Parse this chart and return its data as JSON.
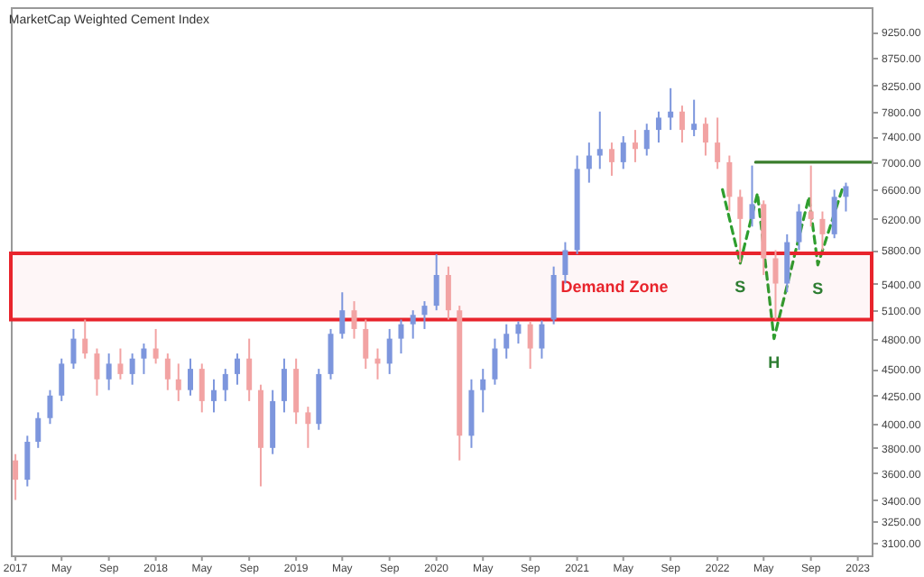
{
  "chart_data": {
    "type": "candlestick",
    "title": "MarketCap Weighted Cement Index",
    "x": [
      "2017-01",
      "2017-02",
      "2017-03",
      "2017-04",
      "2017-05",
      "2017-06",
      "2017-07",
      "2017-08",
      "2017-09",
      "2017-10",
      "2017-11",
      "2017-12",
      "2018-01",
      "2018-02",
      "2018-03",
      "2018-04",
      "2018-05",
      "2018-06",
      "2018-07",
      "2018-08",
      "2018-09",
      "2018-10",
      "2018-11",
      "2018-12",
      "2019-01",
      "2019-02",
      "2019-03",
      "2019-04",
      "2019-05",
      "2019-06",
      "2019-07",
      "2019-08",
      "2019-09",
      "2019-10",
      "2019-11",
      "2019-12",
      "2020-01",
      "2020-02",
      "2020-03",
      "2020-04",
      "2020-05",
      "2020-06",
      "2020-07",
      "2020-08",
      "2020-09",
      "2020-10",
      "2020-11",
      "2020-12",
      "2021-01",
      "2021-02",
      "2021-03",
      "2021-04",
      "2021-05",
      "2021-06",
      "2021-07",
      "2021-08",
      "2021-09",
      "2021-10",
      "2021-11",
      "2021-12",
      "2022-01",
      "2022-02",
      "2022-03",
      "2022-04",
      "2022-05",
      "2022-06",
      "2022-07",
      "2022-08",
      "2022-09",
      "2022-10",
      "2022-11",
      "2022-12"
    ],
    "ohlc": [
      [
        3700,
        3750,
        3400,
        3550
      ],
      [
        3550,
        3900,
        3500,
        3850
      ],
      [
        3850,
        4100,
        3800,
        4050
      ],
      [
        4050,
        4300,
        4000,
        4250
      ],
      [
        4250,
        4600,
        4200,
        4550
      ],
      [
        4550,
        4900,
        4500,
        4800
      ],
      [
        4800,
        5000,
        4600,
        4650
      ],
      [
        4650,
        4700,
        4250,
        4400
      ],
      [
        4400,
        4650,
        4300,
        4550
      ],
      [
        4550,
        4700,
        4400,
        4450
      ],
      [
        4450,
        4650,
        4350,
        4600
      ],
      [
        4600,
        4750,
        4450,
        4700
      ],
      [
        4700,
        4900,
        4550,
        4600
      ],
      [
        4600,
        4650,
        4300,
        4400
      ],
      [
        4400,
        4550,
        4200,
        4300
      ],
      [
        4300,
        4600,
        4250,
        4500
      ],
      [
        4500,
        4550,
        4100,
        4200
      ],
      [
        4200,
        4400,
        4100,
        4300
      ],
      [
        4300,
        4500,
        4200,
        4450
      ],
      [
        4450,
        4650,
        4350,
        4600
      ],
      [
        4600,
        4800,
        4200,
        4300
      ],
      [
        4300,
        4350,
        3500,
        3800
      ],
      [
        3800,
        4300,
        3750,
        4200
      ],
      [
        4200,
        4600,
        4100,
        4500
      ],
      [
        4500,
        4600,
        4000,
        4100
      ],
      [
        4100,
        4150,
        3800,
        4000
      ],
      [
        4000,
        4500,
        3950,
        4450
      ],
      [
        4450,
        4900,
        4400,
        4850
      ],
      [
        4850,
        5300,
        4800,
        5100
      ],
      [
        5100,
        5200,
        4800,
        4900
      ],
      [
        4900,
        5000,
        4500,
        4600
      ],
      [
        4600,
        4700,
        4400,
        4550
      ],
      [
        4550,
        4900,
        4450,
        4800
      ],
      [
        4800,
        5000,
        4650,
        4950
      ],
      [
        4950,
        5100,
        4800,
        5050
      ],
      [
        5050,
        5200,
        4900,
        5150
      ],
      [
        5150,
        5750,
        5100,
        5500
      ],
      [
        5500,
        5600,
        5000,
        5100
      ],
      [
        5100,
        5150,
        3700,
        3900
      ],
      [
        3900,
        4400,
        3800,
        4300
      ],
      [
        4300,
        4500,
        4100,
        4400
      ],
      [
        4400,
        4800,
        4350,
        4700
      ],
      [
        4700,
        4950,
        4600,
        4850
      ],
      [
        4850,
        4980,
        4750,
        4950
      ],
      [
        4950,
        4980,
        4500,
        4700
      ],
      [
        4700,
        4990,
        4600,
        4950
      ],
      [
        5000,
        5600,
        4950,
        5500
      ],
      [
        5500,
        5900,
        5400,
        5800
      ],
      [
        5800,
        7100,
        5750,
        6900
      ],
      [
        6900,
        7300,
        6700,
        7100
      ],
      [
        7100,
        7800,
        6900,
        7200
      ],
      [
        7200,
        7300,
        6800,
        7000
      ],
      [
        7000,
        7400,
        6900,
        7300
      ],
      [
        7300,
        7500,
        7000,
        7200
      ],
      [
        7200,
        7600,
        7100,
        7500
      ],
      [
        7500,
        7800,
        7300,
        7700
      ],
      [
        7700,
        8200,
        7500,
        7800
      ],
      [
        7800,
        7900,
        7300,
        7500
      ],
      [
        7500,
        8000,
        7400,
        7600
      ],
      [
        7600,
        7700,
        7100,
        7300
      ],
      [
        7300,
        7700,
        6900,
        7000
      ],
      [
        7000,
        7100,
        6300,
        6500
      ],
      [
        6500,
        6600,
        5650,
        6200
      ],
      [
        6200,
        6950,
        6100,
        6400
      ],
      [
        6400,
        6450,
        5500,
        5700
      ],
      [
        5700,
        5800,
        5000,
        5400
      ],
      [
        5400,
        6000,
        5300,
        5900
      ],
      [
        5900,
        6400,
        5800,
        6300
      ],
      [
        6300,
        6950,
        6100,
        6200
      ],
      [
        6200,
        6300,
        5800,
        6000
      ],
      [
        6000,
        6600,
        5950,
        6500
      ],
      [
        6500,
        6700,
        6300,
        6650
      ]
    ],
    "colors": [
      "#f2a3a3",
      "#7d96dd",
      "#7d96dd",
      "#7d96dd",
      "#7d96dd",
      "#7d96dd",
      "#f2a3a3",
      "#f2a3a3",
      "#7d96dd",
      "#f2a3a3",
      "#7d96dd",
      "#7d96dd",
      "#f2a3a3",
      "#f2a3a3",
      "#f2a3a3",
      "#7d96dd",
      "#f2a3a3",
      "#7d96dd",
      "#7d96dd",
      "#7d96dd",
      "#f2a3a3",
      "#f2a3a3",
      "#7d96dd",
      "#7d96dd",
      "#f2a3a3",
      "#f2a3a3",
      "#7d96dd",
      "#7d96dd",
      "#7d96dd",
      "#f2a3a3",
      "#f2a3a3",
      "#f2a3a3",
      "#7d96dd",
      "#7d96dd",
      "#7d96dd",
      "#7d96dd",
      "#7d96dd",
      "#f2a3a3",
      "#f2a3a3",
      "#7d96dd",
      "#7d96dd",
      "#7d96dd",
      "#7d96dd",
      "#7d96dd",
      "#f2a3a3",
      "#7d96dd",
      "#7d96dd",
      "#7d96dd",
      "#7d96dd",
      "#7d96dd",
      "#7d96dd",
      "#f2a3a3",
      "#7d96dd",
      "#f2a3a3",
      "#7d96dd",
      "#7d96dd",
      "#7d96dd",
      "#f2a3a3",
      "#7d96dd",
      "#f2a3a3",
      "#f2a3a3",
      "#f2a3a3",
      "#f2a3a3",
      "#7d96dd",
      "#f2a3a3",
      "#f2a3a3",
      "#7d96dd",
      "#7d96dd",
      "#f2a3a3",
      "#f2a3a3",
      "#7d96dd",
      "#7d96dd"
    ],
    "series": [
      {
        "type": "line",
        "color": "#3a7d2c",
        "x": [
          "2022-04-10",
          "2023-02-06"
        ],
        "values": [
          7000,
          7000
        ]
      },
      {
        "type": "line",
        "color": "#2e9e2e",
        "line_style": "dashed",
        "x": [
          "2022-01-14",
          "2022-03-01",
          "2022-04-15",
          "2022-05-28",
          "2022-08-27",
          "2022-09-19",
          "2022-11-21"
        ],
        "values": [
          6600,
          5640,
          6550,
          4800,
          6500,
          5620,
          6600
        ]
      }
    ],
    "bands": [
      {
        "axis": "y",
        "from": 5000,
        "to": 5760,
        "label": "Demand Zone",
        "color": "#e8242c"
      }
    ],
    "annotations": [
      {
        "text": "S",
        "x": "2022-03-01",
        "y": 5640
      },
      {
        "text": "H",
        "x": "2022-05-28",
        "y": 4800
      },
      {
        "text": "S",
        "x": "2022-09-19",
        "y": 5620
      }
    ],
    "xlim": [
      "2016-12-20",
      "2023-02-06"
    ],
    "xticks": [
      {
        "value": "2017-01",
        "label": "2017"
      },
      {
        "value": "2017-05",
        "label": "May"
      },
      {
        "value": "2017-09",
        "label": "Sep"
      },
      {
        "value": "2018-01",
        "label": "2018"
      },
      {
        "value": "2018-05",
        "label": "May"
      },
      {
        "value": "2018-09",
        "label": "Sep"
      },
      {
        "value": "2019-01",
        "label": "2019"
      },
      {
        "value": "2019-05",
        "label": "May"
      },
      {
        "value": "2019-09",
        "label": "Sep"
      },
      {
        "value": "2020-01",
        "label": "2020"
      },
      {
        "value": "2020-05",
        "label": "May"
      },
      {
        "value": "2020-09",
        "label": "Sep"
      },
      {
        "value": "2021-01",
        "label": "2021"
      },
      {
        "value": "2021-05",
        "label": "May"
      },
      {
        "value": "2021-09",
        "label": "Sep"
      },
      {
        "value": "2022-01",
        "label": "2022"
      },
      {
        "value": "2022-05",
        "label": "May"
      },
      {
        "value": "2022-09",
        "label": "Sep"
      },
      {
        "value": "2023-01",
        "label": "2023"
      }
    ],
    "ylim": [
      3020,
      9750
    ],
    "yticks": [
      {
        "value": 9250,
        "label": "9250.00"
      },
      {
        "value": 8750,
        "label": "8750.00"
      },
      {
        "value": 8250,
        "label": "8250.00"
      },
      {
        "value": 7800,
        "label": "7800.00"
      },
      {
        "value": 7400,
        "label": "7400.00"
      },
      {
        "value": 7000,
        "label": "7000.00"
      },
      {
        "value": 6600,
        "label": "6600.00"
      },
      {
        "value": 6200,
        "label": "6200.00"
      },
      {
        "value": 5800,
        "label": "5800.00"
      },
      {
        "value": 5400,
        "label": "5400.00"
      },
      {
        "value": 5100,
        "label": "5100.00"
      },
      {
        "value": 4800,
        "label": "4800.00"
      },
      {
        "value": 4500,
        "label": "4500.00"
      },
      {
        "value": 4250,
        "label": "4250.00"
      },
      {
        "value": 4000,
        "label": "4000.00"
      },
      {
        "value": 3800,
        "label": "3800.00"
      },
      {
        "value": 3600,
        "label": "3600.00"
      },
      {
        "value": 3400,
        "label": "3400.00"
      },
      {
        "value": 3250,
        "label": "3250.00"
      },
      {
        "value": 3100,
        "label": "3100.00"
      }
    ],
    "log": true,
    "grid": false
  }
}
